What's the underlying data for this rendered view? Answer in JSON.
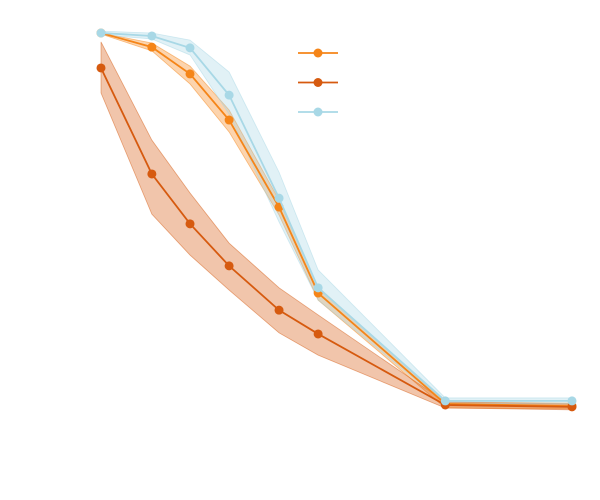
{
  "chart_data": {
    "type": "line",
    "legend": "upper center",
    "x": [
      0,
      10.8,
      18.9,
      27.2,
      37.8,
      46.1,
      73.1,
      100
    ],
    "xlim": [
      0,
      100
    ],
    "ylim": [
      0,
      1
    ],
    "series": [
      {
        "color": "#f58518",
        "values": [
          1.0,
          0.962,
          0.89,
          0.766,
          0.532,
          0.301,
          0.003,
          -0.003
        ],
        "upper": [
          1.0,
          0.973,
          0.911,
          0.793,
          0.551,
          0.317,
          0.008,
          0.005
        ],
        "lower": [
          0.997,
          0.952,
          0.863,
          0.734,
          0.511,
          0.282,
          -0.008,
          -0.01
        ]
      },
      {
        "color": "#d65a0f",
        "values": [
          0.906,
          0.621,
          0.487,
          0.374,
          0.255,
          0.191,
          0.0,
          -0.005
        ],
        "upper": [
          0.976,
          0.712,
          0.57,
          0.435,
          0.315,
          0.242,
          0.008,
          0.003
        ],
        "lower": [
          0.839,
          0.513,
          0.403,
          0.309,
          0.194,
          0.134,
          -0.008,
          -0.013
        ]
      },
      {
        "color": "#a8d8e6",
        "values": [
          1.0,
          0.992,
          0.96,
          0.833,
          0.556,
          0.315,
          0.011,
          0.011
        ],
        "upper": [
          1.005,
          1.0,
          0.981,
          0.895,
          0.626,
          0.363,
          0.019,
          0.019
        ],
        "lower": [
          0.995,
          0.984,
          0.941,
          0.782,
          0.492,
          0.282,
          0.003,
          0.003
        ]
      }
    ]
  }
}
